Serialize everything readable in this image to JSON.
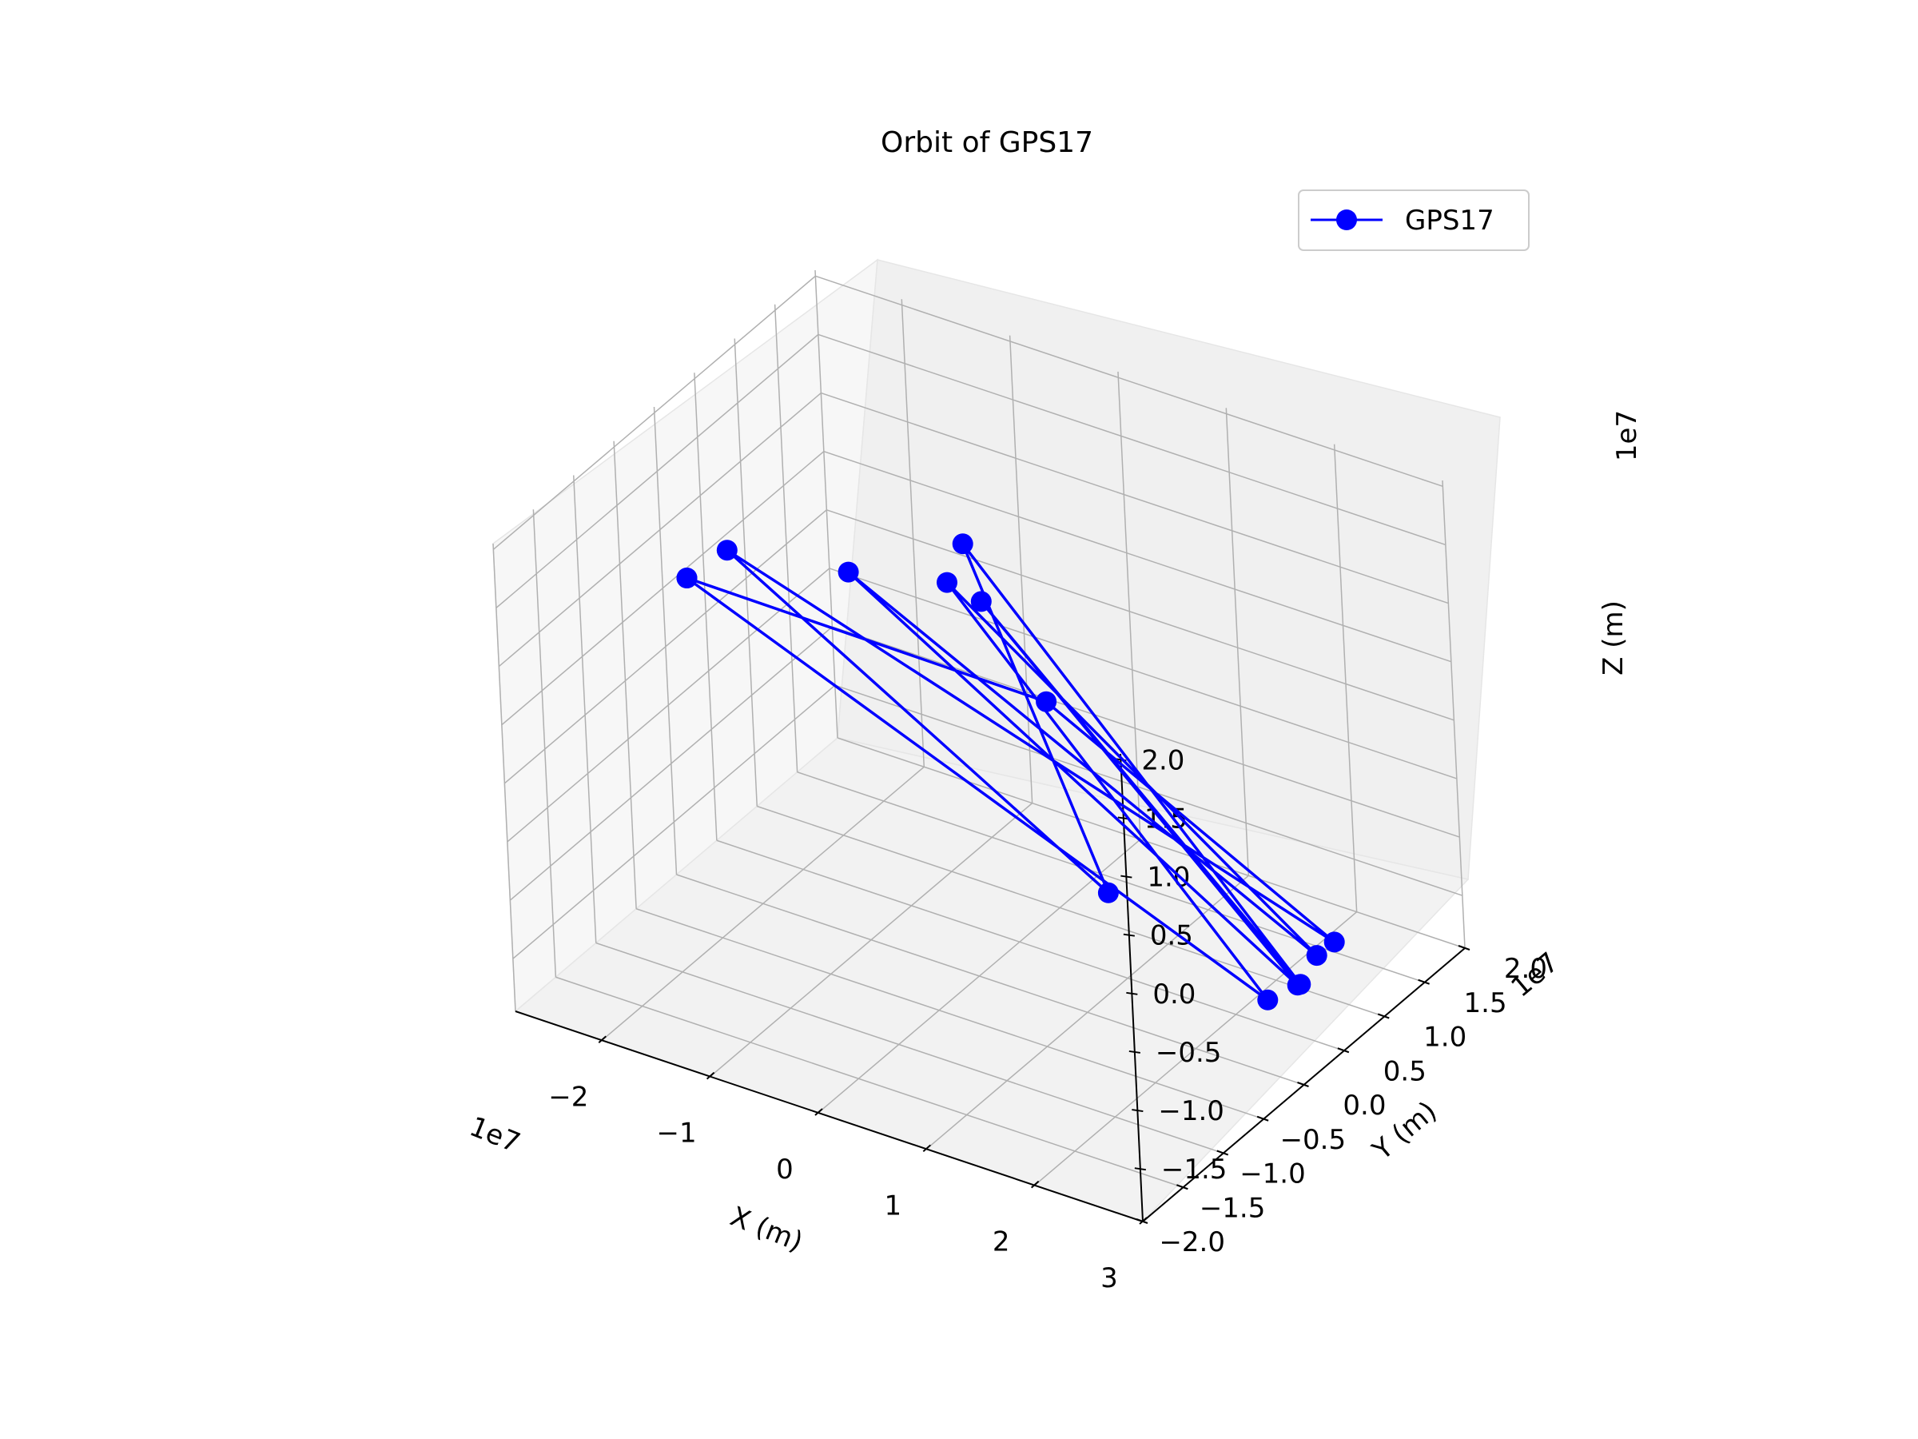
{
  "chart_data": {
    "type": "line3d",
    "title": "Orbit of GPS17",
    "xlabel": "X (m)",
    "ylabel": "Y (m)",
    "zlabel": "Z (m)",
    "x_offset_label": "1e7",
    "y_offset_label": "1e7",
    "z_offset_label": "1e7",
    "xlim": [
      -2.8,
      3.0
    ],
    "ylim": [
      -2.0,
      2.0
    ],
    "zlim": [
      -1.95,
      2.05
    ],
    "x_ticks": [
      -2,
      -1,
      0,
      1,
      2,
      3
    ],
    "x_tick_labels": [
      "−2",
      "−1",
      "0",
      "1",
      "2",
      "3"
    ],
    "y_ticks": [
      -2.0,
      -1.5,
      -1.0,
      -0.5,
      0.0,
      0.5,
      1.0,
      1.5,
      2.0
    ],
    "y_tick_labels": [
      "−2.0",
      "−1.5",
      "−1.0",
      "−0.5",
      "0.0",
      "0.5",
      "1.0",
      "1.5",
      "2.0"
    ],
    "z_ticks": [
      -1.5,
      -1.0,
      -0.5,
      0.0,
      0.5,
      1.0,
      1.5,
      2.0
    ],
    "z_tick_labels": [
      "−1.5",
      "−1.0",
      "−0.5",
      "0.0",
      "0.5",
      "1.0",
      "1.5",
      "2.0"
    ],
    "grid": true,
    "legend": {
      "position": "top-right",
      "entries": [
        "GPS17"
      ]
    },
    "series": [
      {
        "name": "GPS17",
        "color": "#0000ff",
        "marker": "circle",
        "points": [
          {
            "x": -2.53,
            "y": -0.05,
            "z": 0.7
          },
          {
            "x": 2.62,
            "y": 0.1,
            "z": -1.4
          },
          {
            "x": -1.15,
            "y": 1.3,
            "z": 0.3
          },
          {
            "x": 2.55,
            "y": 0.8,
            "z": -1.45
          },
          {
            "x": -1.6,
            "y": 0.7,
            "z": 0.6
          },
          {
            "x": 2.75,
            "y": 0.3,
            "z": -1.35
          },
          {
            "x": -0.68,
            "y": 1.1,
            "z": 0.4
          },
          {
            "x": 2.62,
            "y": 0.5,
            "z": -1.5
          },
          {
            "x": -1.3,
            "y": 1.7,
            "z": 0.35
          },
          {
            "x": 1.25,
            "y": 0.0,
            "z": -0.85
          },
          {
            "x": -2.1,
            "y": -0.1,
            "z": 1.1
          },
          {
            "x": 2.8,
            "y": 0.7,
            "z": -1.2
          },
          {
            "x": 0.2,
            "y": 0.7,
            "z": 0.05
          },
          {
            "x": -2.53,
            "y": -0.05,
            "z": 0.7
          }
        ]
      }
    ]
  }
}
